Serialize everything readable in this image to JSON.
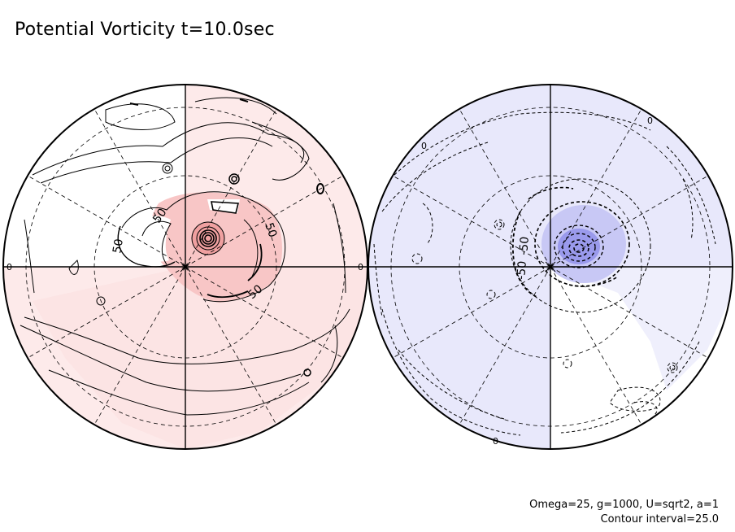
{
  "title": "Potential Vorticity t=10.0sec",
  "parameters": "Omega=25, g=1000, U=sqrt2, a=1",
  "contour_interval": "Contour interval=25.0",
  "colors": {
    "positive_light": "#fdeaea",
    "positive_mid": "#f8c6c6",
    "positive_strong": "#f0a0a0",
    "negative_light": "#e8e8fb",
    "negative_mid": "#c8c8f5",
    "negative_strong": "#9a9aec"
  },
  "hemispheres": [
    {
      "name": "left-hemisphere",
      "contour_labels": [
        "50",
        "50",
        "50",
        "50"
      ],
      "edge_labels": [
        "0",
        "0"
      ]
    },
    {
      "name": "right-hemisphere",
      "contour_labels": [
        "-50",
        "-50"
      ],
      "edge_labels": [
        "0",
        "0",
        "0"
      ]
    }
  ]
}
